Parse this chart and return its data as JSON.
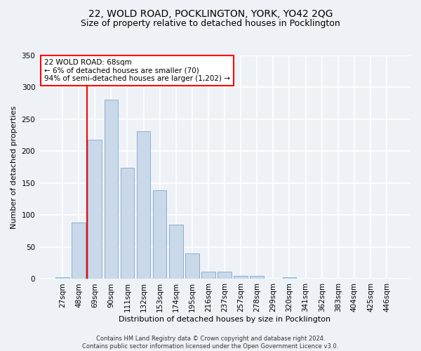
{
  "title": "22, WOLD ROAD, POCKLINGTON, YORK, YO42 2QG",
  "subtitle": "Size of property relative to detached houses in Pocklington",
  "xlabel": "Distribution of detached houses by size in Pocklington",
  "ylabel": "Number of detached properties",
  "bar_color": "#c9d9ea",
  "bar_edge_color": "#8ab0cc",
  "categories": [
    "27sqm",
    "48sqm",
    "69sqm",
    "90sqm",
    "111sqm",
    "132sqm",
    "153sqm",
    "174sqm",
    "195sqm",
    "216sqm",
    "237sqm",
    "257sqm",
    "278sqm",
    "299sqm",
    "320sqm",
    "341sqm",
    "362sqm",
    "383sqm",
    "404sqm",
    "425sqm",
    "446sqm"
  ],
  "values": [
    3,
    88,
    218,
    281,
    174,
    231,
    139,
    85,
    40,
    12,
    12,
    5,
    5,
    0,
    3,
    0,
    1,
    0,
    0,
    1,
    0
  ],
  "ylim": [
    0,
    350
  ],
  "yticks": [
    0,
    50,
    100,
    150,
    200,
    250,
    300,
    350
  ],
  "property_label": "22 WOLD ROAD: 68sqm",
  "annotation_line1": "← 6% of detached houses are smaller (70)",
  "annotation_line2": "94% of semi-detached houses are larger (1,202) →",
  "vline_x_index": 2,
  "footer_line1": "Contains HM Land Registry data © Crown copyright and database right 2024.",
  "footer_line2": "Contains public sector information licensed under the Open Government Licence v3.0.",
  "background_color": "#eef2f7",
  "plot_bg_color": "#eef2f7",
  "grid_color": "#ffffff",
  "title_fontsize": 10,
  "subtitle_fontsize": 9,
  "axis_label_fontsize": 8,
  "tick_fontsize": 7.5,
  "footer_fontsize": 6
}
